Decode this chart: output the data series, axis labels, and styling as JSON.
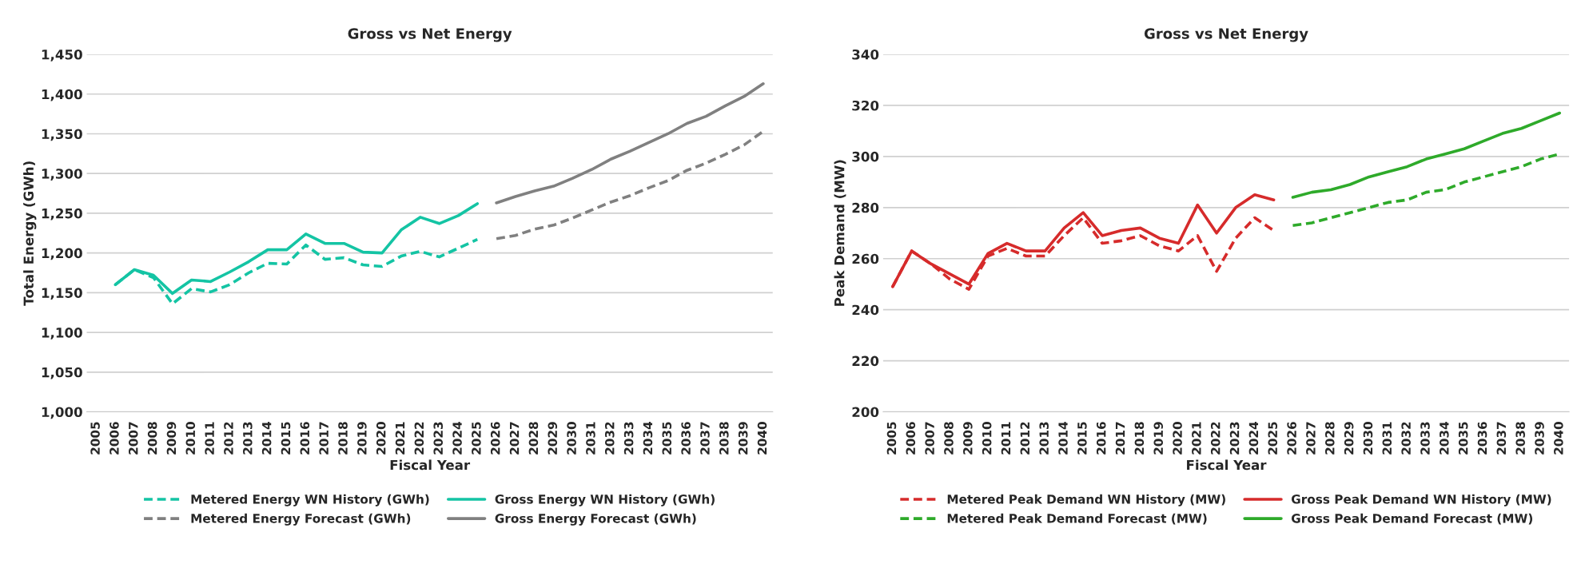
{
  "chart_data": [
    {
      "type": "line",
      "title": "Gross vs Net Energy",
      "xlabel": "Fiscal Year",
      "ylabel": "Total Energy (GWh)",
      "categories": [
        "2005",
        "2006",
        "2007",
        "2008",
        "2009",
        "2010",
        "2011",
        "2012",
        "2013",
        "2014",
        "2015",
        "2016",
        "2017",
        "2018",
        "2019",
        "2020",
        "2021",
        "2022",
        "2023",
        "2024",
        "2025",
        "2026",
        "2027",
        "2028",
        "2029",
        "2030",
        "2031",
        "2032",
        "2033",
        "2034",
        "2035",
        "2036",
        "2037",
        "2038",
        "2039",
        "2040"
      ],
      "ylim": [
        1000,
        1450
      ],
      "yticks": [
        {
          "value": 1000,
          "label": "1,000"
        },
        {
          "value": 1050,
          "label": "1,050"
        },
        {
          "value": 1100,
          "label": "1,100"
        },
        {
          "value": 1150,
          "label": "1,150"
        },
        {
          "value": 1200,
          "label": "1,200"
        },
        {
          "value": 1250,
          "label": "1,250"
        },
        {
          "value": 1300,
          "label": "1,300"
        },
        {
          "value": 1350,
          "label": "1,350"
        },
        {
          "value": 1400,
          "label": "1,400"
        },
        {
          "value": 1450,
          "label": "1,450"
        }
      ],
      "grid": "y",
      "legend": "bottom",
      "series": [
        {
          "name": "Metered Energy WN History (GWh)",
          "color": "#14c4a4",
          "line_style": "dashed",
          "values": [
            null,
            1160,
            1179,
            1169,
            1136,
            1155,
            1151,
            1160,
            1175,
            1187,
            1186,
            1210,
            1192,
            1194,
            1185,
            1183,
            1196,
            1202,
            1195,
            1206,
            1217,
            null,
            null,
            null,
            null,
            null,
            null,
            null,
            null,
            null,
            null,
            null,
            null,
            null,
            null,
            null
          ]
        },
        {
          "name": "Gross Energy WN History (GWh)",
          "color": "#14c4a4",
          "line_style": "solid",
          "values": [
            null,
            1160,
            1179,
            1172,
            1149,
            1166,
            1164,
            1176,
            1189,
            1204,
            1204,
            1224,
            1212,
            1212,
            1201,
            1200,
            1229,
            1245,
            1237,
            1247,
            1262,
            null,
            null,
            null,
            null,
            null,
            null,
            null,
            null,
            null,
            null,
            null,
            null,
            null,
            null,
            null
          ]
        },
        {
          "name": "Metered Energy Forecast (GWh)",
          "color": "#808080",
          "line_style": "dashed",
          "values": [
            null,
            null,
            null,
            null,
            null,
            null,
            null,
            null,
            null,
            null,
            null,
            null,
            null,
            null,
            null,
            null,
            null,
            null,
            null,
            null,
            null,
            1218,
            1222,
            1230,
            1235,
            1244,
            1254,
            1264,
            1272,
            1282,
            1291,
            1304,
            1313,
            1324,
            1336,
            1353
          ]
        },
        {
          "name": "Gross Energy Forecast (GWh)",
          "color": "#808080",
          "line_style": "solid",
          "values": [
            null,
            null,
            null,
            null,
            null,
            null,
            null,
            null,
            null,
            null,
            null,
            null,
            null,
            null,
            null,
            null,
            null,
            null,
            null,
            null,
            null,
            1263,
            1271,
            1278,
            1284,
            1294,
            1305,
            1318,
            1328,
            1339,
            1350,
            1363,
            1372,
            1385,
            1397,
            1413
          ]
        }
      ]
    },
    {
      "type": "line",
      "title": "Gross vs Net Energy",
      "xlabel": "Fiscal Year",
      "ylabel": "Peak Demand (MW)",
      "categories": [
        "2005",
        "2006",
        "2007",
        "2008",
        "2009",
        "2010",
        "2011",
        "2012",
        "2013",
        "2014",
        "2015",
        "2016",
        "2017",
        "2018",
        "2019",
        "2020",
        "2021",
        "2022",
        "2023",
        "2024",
        "2025",
        "2026",
        "2027",
        "2028",
        "2029",
        "2030",
        "2031",
        "2032",
        "2033",
        "2034",
        "2035",
        "2036",
        "2037",
        "2038",
        "2039",
        "2040"
      ],
      "ylim": [
        200,
        340
      ],
      "yticks": [
        200,
        220,
        240,
        260,
        280,
        300,
        320,
        340
      ],
      "grid": "y",
      "legend": "bottom",
      "series": [
        {
          "name": "Metered Peak Demand WN History (MW)",
          "color": "#d62b2b",
          "line_style": "dashed",
          "values": [
            249,
            263,
            258,
            252,
            248,
            261,
            264,
            261,
            261,
            269,
            276,
            266,
            267,
            269,
            265,
            263,
            269,
            255,
            268,
            276,
            271,
            null,
            null,
            null,
            null,
            null,
            null,
            null,
            null,
            null,
            null,
            null,
            null,
            null,
            null,
            null
          ]
        },
        {
          "name": "Gross Peak Demand WN History (MW)",
          "color": "#d62b2b",
          "line_style": "solid",
          "values": [
            249,
            263,
            258,
            254,
            250,
            262,
            266,
            263,
            263,
            272,
            278,
            269,
            271,
            272,
            268,
            266,
            281,
            270,
            280,
            285,
            283,
            null,
            null,
            null,
            null,
            null,
            null,
            null,
            null,
            null,
            null,
            null,
            null,
            null,
            null,
            null
          ]
        },
        {
          "name": "Metered Peak Demand Forecast (MW)",
          "color": "#2eaa2a",
          "line_style": "dashed",
          "values": [
            null,
            null,
            null,
            null,
            null,
            null,
            null,
            null,
            null,
            null,
            null,
            null,
            null,
            null,
            null,
            null,
            null,
            null,
            null,
            null,
            null,
            273,
            274,
            276,
            278,
            280,
            282,
            283,
            286,
            287,
            290,
            292,
            294,
            296,
            299,
            301
          ]
        },
        {
          "name": "Gross Peak Demand Forecast (MW)",
          "color": "#2eaa2a",
          "line_style": "solid",
          "values": [
            null,
            null,
            null,
            null,
            null,
            null,
            null,
            null,
            null,
            null,
            null,
            null,
            null,
            null,
            null,
            null,
            null,
            null,
            null,
            null,
            null,
            284,
            286,
            287,
            289,
            292,
            294,
            296,
            299,
            301,
            303,
            306,
            309,
            311,
            314,
            317
          ]
        }
      ]
    }
  ]
}
